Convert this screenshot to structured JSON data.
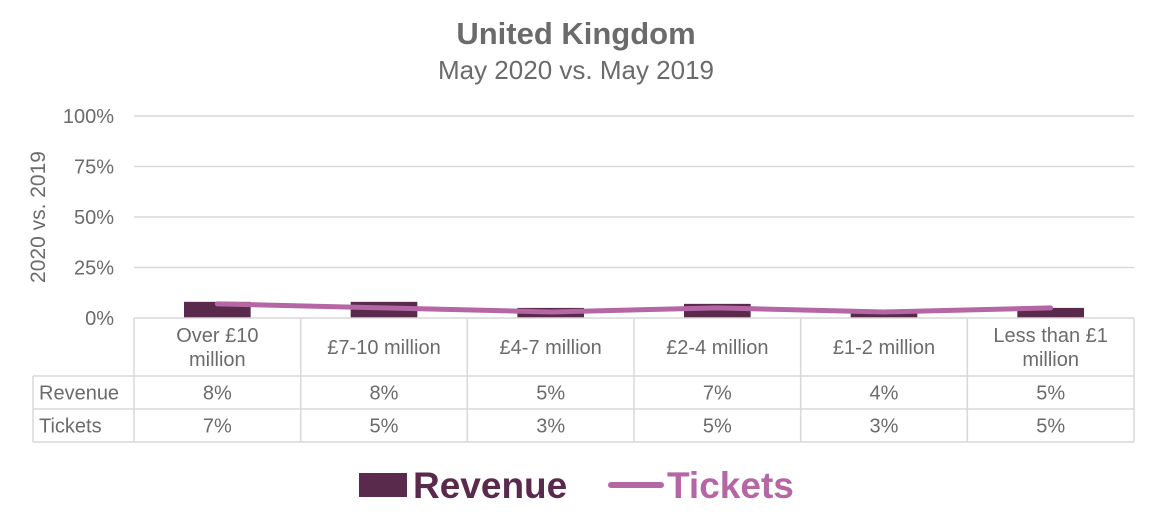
{
  "chart_data": {
    "type": "bar",
    "title": "United Kingdom",
    "subtitle": "May 2020 vs. May 2019",
    "ylabel": "2020 vs. 2019",
    "ylim": [
      0,
      100
    ],
    "yticks": [
      "0%",
      "25%",
      "50%",
      "75%",
      "100%"
    ],
    "categories": [
      [
        "Over £10",
        "million"
      ],
      [
        "£7-10 million"
      ],
      [
        "£4-7 million"
      ],
      [
        "£2-4 million"
      ],
      [
        "£1-2 million"
      ],
      [
        "Less than £1",
        "million"
      ]
    ],
    "series": [
      {
        "name": "Revenue",
        "kind": "bar",
        "color": "#5a2a4c",
        "values": [
          8,
          8,
          5,
          7,
          4,
          5
        ],
        "labels": [
          "8%",
          "8%",
          "5%",
          "7%",
          "4%",
          "5%"
        ]
      },
      {
        "name": "Tickets",
        "kind": "line",
        "color": "#b566a4",
        "values": [
          7,
          5,
          3,
          5,
          3,
          5
        ],
        "labels": [
          "7%",
          "5%",
          "3%",
          "5%",
          "3%",
          "5%"
        ]
      }
    ],
    "grid": true,
    "legend": "bottom",
    "data_table": true
  }
}
